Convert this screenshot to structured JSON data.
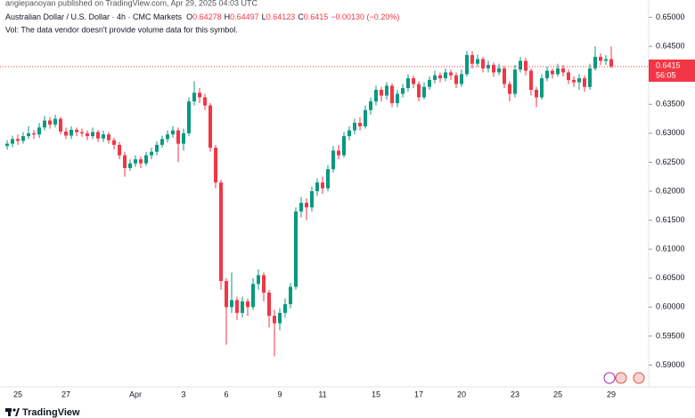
{
  "chart_data": {
    "type": "candlestick",
    "publisher": "angiepanoyan published on TradingView.com, Apr 29, 2025 04:03 UTC",
    "title": "Australian Dollar / U.S. Dollar · 4h · CMC Markets",
    "ohlc_labels": [
      "O",
      "H",
      "L",
      "C"
    ],
    "change": "−0.00130 (−0.20%)",
    "volume_note": "Vol: The data vendor doesn't provide volume data for this symbol.",
    "countdown": "56:05",
    "footer": "TradingView",
    "up_color": "#089981",
    "down_color": "#f23645",
    "ylim": [
      0.587,
      0.653
    ],
    "yticks": [
      {
        "value": 0.59,
        "label": "0.59000"
      },
      {
        "value": 0.595,
        "label": "0.59500"
      },
      {
        "value": 0.6,
        "label": "0.60000"
      },
      {
        "value": 0.605,
        "label": "0.60500"
      },
      {
        "value": 0.61,
        "label": "0.61000"
      },
      {
        "value": 0.615,
        "label": "0.61500"
      },
      {
        "value": 0.62,
        "label": "0.62000"
      },
      {
        "value": 0.625,
        "label": "0.62500"
      },
      {
        "value": 0.63,
        "label": "0.63000"
      },
      {
        "value": 0.635,
        "label": "0.63500"
      },
      {
        "value": 0.64,
        "label": "0.64000"
      },
      {
        "value": 0.645,
        "label": "0.64500"
      },
      {
        "value": 0.65,
        "label": "0.65000"
      }
    ],
    "categories": [
      null,
      null,
      "25",
      null,
      null,
      null,
      null,
      null,
      null,
      null,
      null,
      "27",
      null,
      null,
      null,
      null,
      null,
      null,
      null,
      null,
      null,
      null,
      null,
      null,
      "Apr",
      null,
      null,
      null,
      null,
      null,
      null,
      null,
      null,
      "3",
      null,
      null,
      null,
      null,
      null,
      null,
      null,
      "6",
      null,
      null,
      null,
      null,
      null,
      null,
      null,
      null,
      null,
      "9",
      null,
      null,
      null,
      null,
      null,
      null,
      null,
      "11",
      null,
      null,
      null,
      null,
      null,
      null,
      null,
      null,
      null,
      "15",
      null,
      null,
      null,
      null,
      null,
      null,
      null,
      "17",
      null,
      null,
      null,
      null,
      null,
      null,
      null,
      "20",
      null,
      null,
      null,
      null,
      null,
      null,
      null,
      null,
      null,
      "23",
      null,
      null,
      null,
      null,
      null,
      null,
      null,
      "25",
      null,
      null,
      null,
      null,
      null,
      null,
      null,
      null,
      null,
      "29"
    ],
    "open": [
      0.6278,
      0.6282,
      0.629,
      0.6287,
      0.6295,
      0.63,
      0.6298,
      0.631,
      0.6322,
      0.6315,
      0.6325,
      0.6303,
      0.6296,
      0.6306,
      0.6302,
      0.63,
      0.6295,
      0.6302,
      0.6291,
      0.6298,
      0.6288,
      0.628,
      0.6262,
      0.624,
      0.6248,
      0.6255,
      0.6248,
      0.6262,
      0.6268,
      0.628,
      0.629,
      0.6298,
      0.6305,
      0.6282,
      0.63,
      0.6355,
      0.637,
      0.6362,
      0.6348,
      0.6275,
      0.6215,
      0.6045,
      0.6,
      0.6012,
      0.599,
      0.601,
      0.6,
      0.604,
      0.6055,
      0.6025,
      0.5985,
      0.5972,
      0.599,
      0.6005,
      0.6035,
      0.6165,
      0.618,
      0.6172,
      0.62,
      0.6215,
      0.6205,
      0.6238,
      0.627,
      0.6262,
      0.6295,
      0.6305,
      0.6318,
      0.6312,
      0.634,
      0.6355,
      0.6375,
      0.6365,
      0.6382,
      0.6352,
      0.6368,
      0.6378,
      0.6395,
      0.6385,
      0.6362,
      0.638,
      0.6392,
      0.64,
      0.6395,
      0.6405,
      0.64,
      0.6385,
      0.6402,
      0.6435,
      0.642,
      0.6428,
      0.6412,
      0.6418,
      0.6405,
      0.6412,
      0.6385,
      0.6368,
      0.641,
      0.6425,
      0.6408,
      0.6375,
      0.6362,
      0.6395,
      0.6408,
      0.6402,
      0.6412,
      0.6405,
      0.6392,
      0.6388,
      0.6395,
      0.638,
      0.6412,
      0.6432,
      0.6425,
      0.64278
    ],
    "high": [
      0.6288,
      0.6296,
      0.6298,
      0.6302,
      0.6312,
      0.6306,
      0.6318,
      0.633,
      0.6328,
      0.6332,
      0.6328,
      0.631,
      0.6312,
      0.631,
      0.6308,
      0.6305,
      0.631,
      0.6306,
      0.6305,
      0.6302,
      0.6292,
      0.6285,
      0.6268,
      0.6255,
      0.6262,
      0.626,
      0.6268,
      0.6275,
      0.6286,
      0.6296,
      0.6305,
      0.6312,
      0.631,
      0.6308,
      0.6362,
      0.639,
      0.6378,
      0.6368,
      0.6352,
      0.628,
      0.622,
      0.605,
      0.606,
      0.6018,
      0.6018,
      0.6015,
      0.605,
      0.6065,
      0.606,
      0.603,
      0.5995,
      0.5998,
      0.6015,
      0.6042,
      0.6172,
      0.619,
      0.6188,
      0.6208,
      0.6222,
      0.6225,
      0.6245,
      0.6278,
      0.628,
      0.6302,
      0.6312,
      0.6325,
      0.6328,
      0.6348,
      0.6362,
      0.6382,
      0.638,
      0.6388,
      0.6386,
      0.6375,
      0.6385,
      0.6402,
      0.64,
      0.639,
      0.6388,
      0.6398,
      0.6408,
      0.6405,
      0.6412,
      0.641,
      0.6405,
      0.641,
      0.6442,
      0.6442,
      0.6436,
      0.6432,
      0.6425,
      0.6422,
      0.642,
      0.6416,
      0.639,
      0.6418,
      0.6432,
      0.643,
      0.6412,
      0.638,
      0.6402,
      0.6415,
      0.6412,
      0.642,
      0.6418,
      0.641,
      0.6398,
      0.6402,
      0.64,
      0.642,
      0.645,
      0.6438,
      0.6435,
      0.64497
    ],
    "low": [
      0.6272,
      0.6276,
      0.628,
      0.6282,
      0.629,
      0.629,
      0.6292,
      0.6305,
      0.6308,
      0.631,
      0.6298,
      0.629,
      0.629,
      0.6295,
      0.6294,
      0.6288,
      0.629,
      0.6285,
      0.6285,
      0.6282,
      0.6272,
      0.6255,
      0.6225,
      0.6235,
      0.6242,
      0.624,
      0.6244,
      0.6255,
      0.6262,
      0.6275,
      0.6284,
      0.6292,
      0.625,
      0.627,
      0.6295,
      0.6348,
      0.6352,
      0.634,
      0.6268,
      0.6205,
      0.603,
      0.5935,
      0.599,
      0.5978,
      0.5982,
      0.5985,
      0.5995,
      0.603,
      0.601,
      0.5965,
      0.5915,
      0.596,
      0.5982,
      0.5998,
      0.603,
      0.6155,
      0.615,
      0.6165,
      0.6192,
      0.6195,
      0.62,
      0.6232,
      0.6255,
      0.6258,
      0.6288,
      0.6298,
      0.6305,
      0.6308,
      0.6332,
      0.6348,
      0.6355,
      0.6358,
      0.6345,
      0.6345,
      0.6362,
      0.6372,
      0.6378,
      0.6355,
      0.6358,
      0.6375,
      0.6386,
      0.6388,
      0.639,
      0.6392,
      0.6378,
      0.638,
      0.6398,
      0.6412,
      0.6415,
      0.6405,
      0.6405,
      0.6398,
      0.64,
      0.6378,
      0.6355,
      0.6362,
      0.6405,
      0.64,
      0.6365,
      0.6345,
      0.6358,
      0.639,
      0.6395,
      0.6398,
      0.6398,
      0.6385,
      0.638,
      0.6375,
      0.6372,
      0.6375,
      0.6408,
      0.6418,
      0.6418,
      0.64123
    ],
    "close": [
      0.6282,
      0.629,
      0.6287,
      0.6295,
      0.63,
      0.6298,
      0.631,
      0.6322,
      0.6315,
      0.6325,
      0.6303,
      0.6296,
      0.6306,
      0.6302,
      0.63,
      0.6295,
      0.6302,
      0.6291,
      0.6298,
      0.6288,
      0.628,
      0.6262,
      0.624,
      0.6248,
      0.6255,
      0.6248,
      0.6262,
      0.6268,
      0.628,
      0.629,
      0.6298,
      0.6305,
      0.6282,
      0.63,
      0.6355,
      0.637,
      0.6362,
      0.6348,
      0.6275,
      0.6215,
      0.6045,
      0.6,
      0.6012,
      0.599,
      0.601,
      0.6,
      0.604,
      0.6055,
      0.6025,
      0.5985,
      0.5972,
      0.599,
      0.6005,
      0.6035,
      0.6165,
      0.618,
      0.6172,
      0.62,
      0.6215,
      0.6205,
      0.6238,
      0.627,
      0.6262,
      0.6295,
      0.6305,
      0.6318,
      0.6312,
      0.634,
      0.6355,
      0.6375,
      0.6365,
      0.6382,
      0.6352,
      0.6368,
      0.6378,
      0.6395,
      0.6385,
      0.6362,
      0.638,
      0.6392,
      0.64,
      0.6395,
      0.6405,
      0.64,
      0.6385,
      0.6402,
      0.6435,
      0.642,
      0.6428,
      0.6412,
      0.6418,
      0.6405,
      0.6412,
      0.6385,
      0.6368,
      0.641,
      0.6425,
      0.6408,
      0.6375,
      0.6362,
      0.6395,
      0.6408,
      0.6402,
      0.6412,
      0.6405,
      0.6392,
      0.6388,
      0.6395,
      0.638,
      0.6412,
      0.6432,
      0.6425,
      0.64278,
      0.6415
    ]
  }
}
